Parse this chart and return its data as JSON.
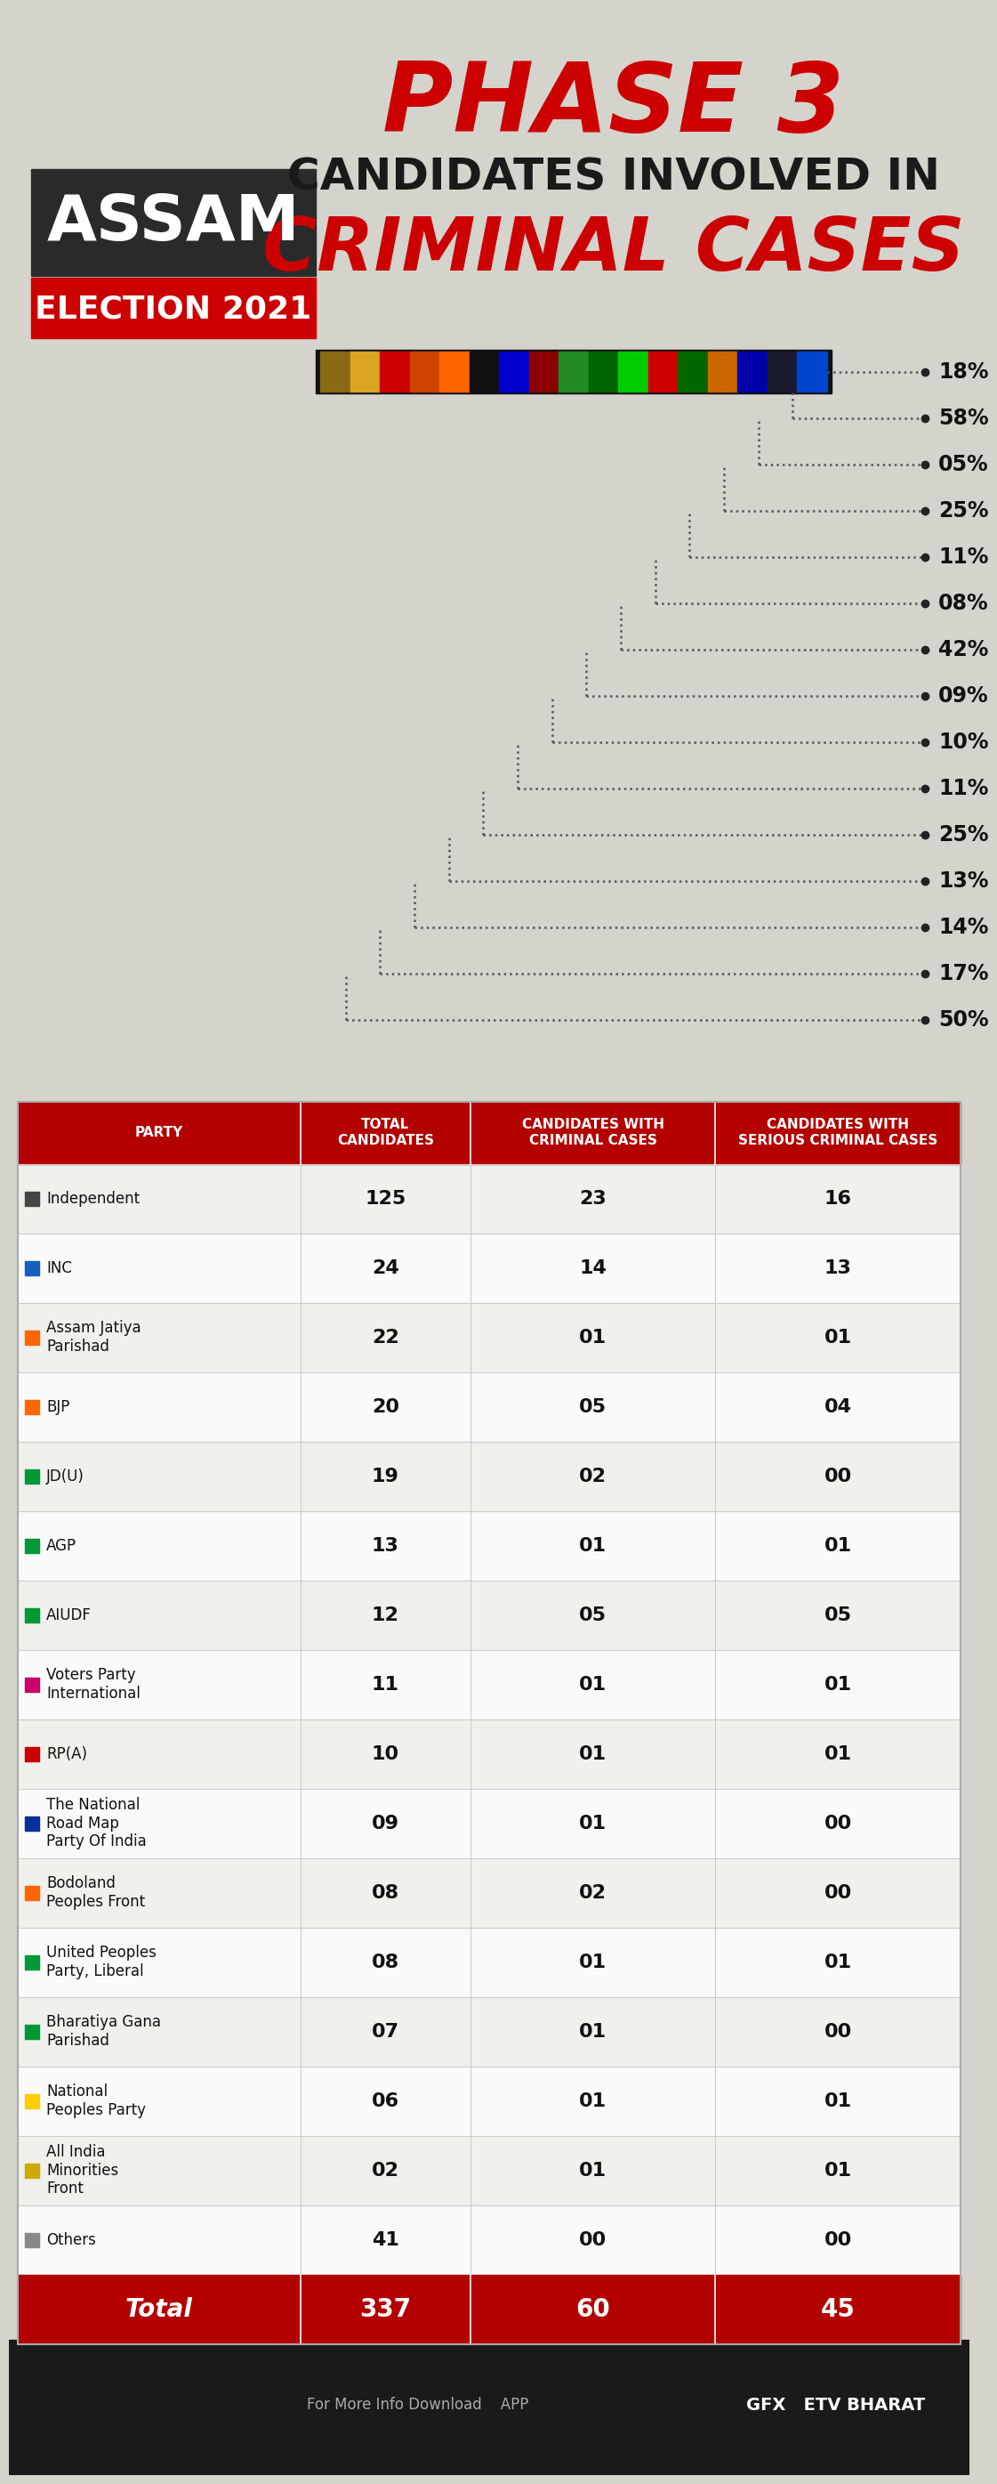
{
  "bg_color": "#d4d4cc",
  "percentages": [
    "18%",
    "58%",
    "05%",
    "25%",
    "11%",
    "08%",
    "42%",
    "09%",
    "10%",
    "11%",
    "25%",
    "13%",
    "14%",
    "17%",
    "50%"
  ],
  "col_headers": [
    "PARTY",
    "TOTAL\nCANDIDATES",
    "CANDIDATES WITH\nCRIMINAL CASES",
    "CANDIDATES WITH\nSERIOUS CRIMINAL CASES"
  ],
  "parties": [
    {
      "name": "Independent",
      "total": "125",
      "criminal": "23",
      "serious": "16"
    },
    {
      "name": "INC",
      "total": "24",
      "criminal": "14",
      "serious": "13"
    },
    {
      "name": "Assam Jatiya\nParishad",
      "total": "22",
      "criminal": "01",
      "serious": "01"
    },
    {
      "name": "BJP",
      "total": "20",
      "criminal": "05",
      "serious": "04"
    },
    {
      "name": "JD(U)",
      "total": "19",
      "criminal": "02",
      "serious": "00"
    },
    {
      "name": "AGP",
      "total": "13",
      "criminal": "01",
      "serious": "01"
    },
    {
      "name": "AIUDF",
      "total": "12",
      "criminal": "05",
      "serious": "05"
    },
    {
      "name": "Voters Party\nInternational",
      "total": "11",
      "criminal": "01",
      "serious": "01"
    },
    {
      "name": "RP(A)",
      "total": "10",
      "criminal": "01",
      "serious": "01"
    },
    {
      "name": "The National\nRoad Map\nParty Of India",
      "total": "09",
      "criminal": "01",
      "serious": "00"
    },
    {
      "name": "Bodoland\nPeoples Front",
      "total": "08",
      "criminal": "02",
      "serious": "00"
    },
    {
      "name": "United Peoples\nParty, Liberal",
      "total": "08",
      "criminal": "01",
      "serious": "01"
    },
    {
      "name": "Bharatiya Gana\nParishad",
      "total": "07",
      "criminal": "01",
      "serious": "00"
    },
    {
      "name": "National\nPeoples Party",
      "total": "06",
      "criminal": "01",
      "serious": "01"
    },
    {
      "name": "All India\nMinorities\nFront",
      "total": "02",
      "criminal": "01",
      "serious": "01"
    },
    {
      "name": "Others",
      "total": "41",
      "criminal": "00",
      "serious": "00"
    }
  ],
  "total_row": {
    "name": "Total",
    "total": "337",
    "criminal": "60",
    "serious": "45"
  },
  "barrel_colors": [
    "#8B6914",
    "#DAA520",
    "#cc0000",
    "#cc4400",
    "#ff6600",
    "#111111",
    "#0000cc",
    "#8B0000",
    "#228B22",
    "#006400",
    "#00cc00",
    "#cc0000",
    "#006600",
    "#cc6600",
    "#0000aa",
    "#1a1a2e",
    "#0044cc"
  ],
  "sq_colors": [
    "#444444",
    "#1560BD",
    "#FF6600",
    "#FF6600",
    "#009933",
    "#009933",
    "#009933",
    "#CC0066",
    "#CC0000",
    "#003399",
    "#FF6600",
    "#009933",
    "#009933",
    "#FFCC00",
    "#CCAA00",
    "#888888"
  ]
}
